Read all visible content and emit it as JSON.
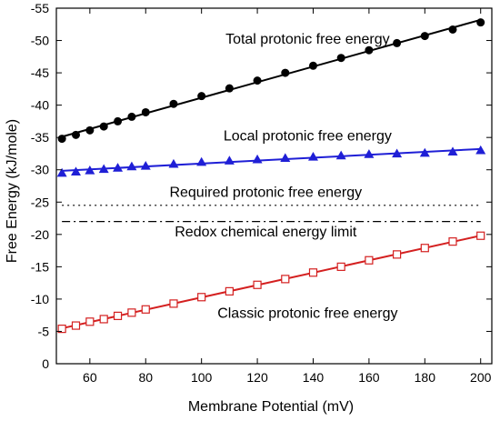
{
  "chart_data": {
    "type": "line",
    "xlabel": "Membrane Potential (mV)",
    "ylabel": "Free Energy (kJ/mole)",
    "xlim": [
      48,
      204
    ],
    "ylim": [
      0,
      -55
    ],
    "xticks": [
      60,
      80,
      100,
      120,
      140,
      160,
      180,
      200
    ],
    "yticks": [
      0,
      -5,
      -10,
      -15,
      -20,
      -25,
      -30,
      -35,
      -40,
      -45,
      -50,
      -55
    ],
    "ytick_labels": [
      "0",
      "-5",
      "-10",
      "-15",
      "-20",
      "-25",
      "-30",
      "-35",
      "-40",
      "-45",
      "-50",
      "-55"
    ],
    "grid": false,
    "series": [
      {
        "name": "Total protonic free energy",
        "color": "#000000",
        "marker": "filled-circle",
        "x": [
          50,
          55,
          60,
          65,
          70,
          75,
          80,
          90,
          100,
          110,
          120,
          130,
          140,
          150,
          160,
          170,
          180,
          190,
          200
        ],
        "y": [
          -34.8,
          -35.4,
          -36.1,
          -36.7,
          -37.5,
          -38.2,
          -38.9,
          -40.2,
          -41.4,
          -42.6,
          -43.8,
          -45.0,
          -46.1,
          -47.3,
          -48.5,
          -49.6,
          -50.7,
          -51.7,
          -52.8
        ]
      },
      {
        "name": "Local protonic free energy",
        "color": "#1f1fd6",
        "marker": "filled-triangle",
        "x": [
          50,
          55,
          60,
          65,
          70,
          75,
          80,
          90,
          100,
          110,
          120,
          130,
          140,
          150,
          160,
          170,
          180,
          190,
          200
        ],
        "y": [
          -29.5,
          -29.7,
          -29.9,
          -30.1,
          -30.3,
          -30.5,
          -30.6,
          -30.9,
          -31.2,
          -31.4,
          -31.6,
          -31.8,
          -32.0,
          -32.2,
          -32.4,
          -32.5,
          -32.6,
          -32.8,
          -33.0
        ]
      },
      {
        "name": "Classic protonic free energy",
        "color": "#d42020",
        "marker": "open-square",
        "x": [
          50,
          55,
          60,
          65,
          70,
          75,
          80,
          90,
          100,
          110,
          120,
          130,
          140,
          150,
          160,
          170,
          180,
          190,
          200
        ],
        "y": [
          -5.4,
          -5.9,
          -6.5,
          -6.9,
          -7.4,
          -7.9,
          -8.4,
          -9.3,
          -10.3,
          -11.2,
          -12.2,
          -13.1,
          -14.1,
          -15.0,
          -16.0,
          -16.9,
          -17.9,
          -18.9,
          -19.8
        ]
      }
    ],
    "reference_lines": [
      {
        "name": "Required protonic free energy",
        "y": -24.5,
        "style": "dotted",
        "color": "#000000"
      },
      {
        "name": "Redox chemical energy limit",
        "y": -22.0,
        "style": "dash-dot",
        "color": "#000000"
      }
    ],
    "annotations": [
      {
        "text": "Total protonic free energy",
        "x": 138,
        "y": -49.5
      },
      {
        "text": "Local protonic free energy",
        "x": 138,
        "y": -34.5
      },
      {
        "text": "Required protonic free energy",
        "x": 123,
        "y": -25.8
      },
      {
        "text": "Redox chemical energy limit",
        "x": 123,
        "y": -19.7
      },
      {
        "text": "Classic protonic free energy",
        "x": 138,
        "y": -7.1
      }
    ]
  }
}
